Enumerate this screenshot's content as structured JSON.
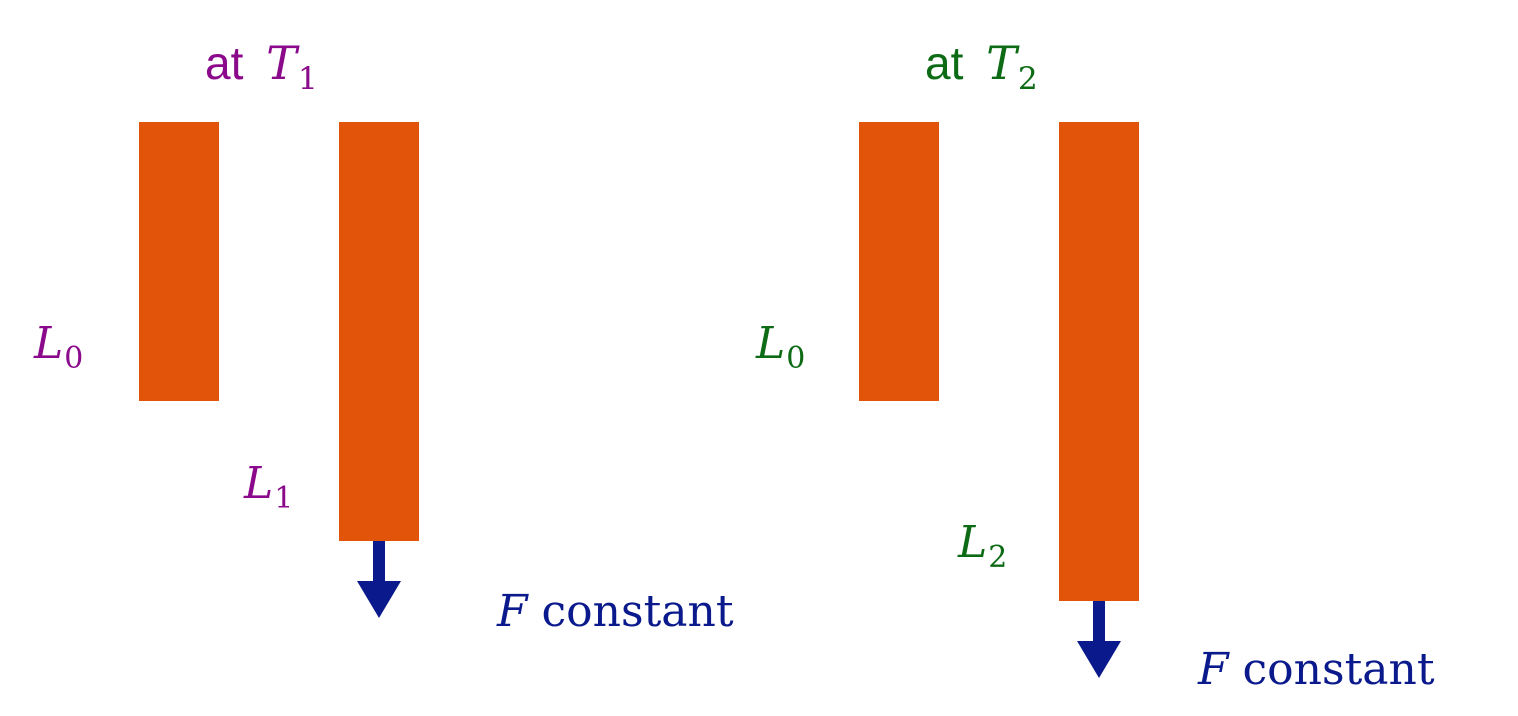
{
  "colors": {
    "rod": "#e2540a",
    "state1": "#8b0a8b",
    "state2": "#0c6b14",
    "force": "#0a1a8c"
  },
  "left": {
    "title_word": "at",
    "title_symbol": "T",
    "title_sub": "1",
    "ref_symbol": "L",
    "ref_sub": "0",
    "stretched_symbol": "L",
    "stretched_sub": "1",
    "force_symbol": "F",
    "force_text": "constant"
  },
  "right": {
    "title_word": "at",
    "title_symbol": "T",
    "title_sub": "2",
    "ref_symbol": "L",
    "ref_sub": "0",
    "stretched_symbol": "L",
    "stretched_sub": "2",
    "force_symbol": "F",
    "force_text": "constant"
  }
}
